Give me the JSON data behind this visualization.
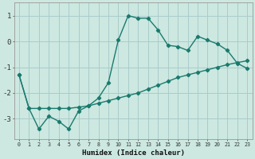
{
  "xlabel": "Humidex (Indice chaleur)",
  "background_color": "#cce8e0",
  "grid_color": "#aacccc",
  "line_color": "#1a7a6e",
  "x_values": [
    0,
    1,
    2,
    3,
    4,
    5,
    6,
    7,
    8,
    9,
    10,
    11,
    12,
    13,
    14,
    15,
    16,
    17,
    18,
    19,
    20,
    21,
    22,
    23
  ],
  "series1": [
    -1.3,
    -2.6,
    -3.4,
    -2.9,
    -3.1,
    -3.4,
    -2.7,
    -2.5,
    -2.2,
    -1.6,
    0.05,
    1.0,
    0.9,
    0.9,
    0.45,
    -0.15,
    -0.2,
    -0.35,
    0.2,
    0.05,
    -0.1,
    -0.35,
    -0.85,
    -1.05
  ],
  "series2": [
    -1.3,
    -2.6,
    -2.6,
    -2.6,
    -2.6,
    -2.6,
    -2.55,
    -2.5,
    -2.4,
    -2.3,
    -2.2,
    -2.1,
    -2.0,
    -1.85,
    -1.7,
    -1.55,
    -1.4,
    -1.3,
    -1.2,
    -1.1,
    -1.0,
    -0.9,
    -0.82,
    -0.75
  ],
  "ylim": [
    -3.8,
    1.5
  ],
  "xlim": [
    -0.5,
    23.5
  ],
  "yticks": [
    -3,
    -2,
    -1,
    0,
    1
  ],
  "xticks": [
    0,
    1,
    2,
    3,
    4,
    5,
    6,
    7,
    8,
    9,
    10,
    11,
    12,
    13,
    14,
    15,
    16,
    17,
    18,
    19,
    20,
    21,
    22,
    23
  ]
}
